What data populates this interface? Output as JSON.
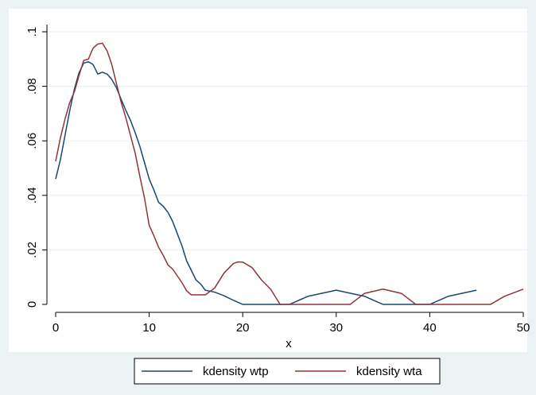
{
  "chart_data": {
    "type": "line",
    "title": "",
    "xlabel": "x",
    "ylabel": "",
    "xlim": [
      0,
      50
    ],
    "ylim": [
      0,
      0.1
    ],
    "x_ticks": [
      0,
      10,
      20,
      30,
      40,
      50
    ],
    "x_tick_labels": [
      "0",
      "10",
      "20",
      "30",
      "40",
      "50"
    ],
    "y_ticks": [
      0,
      0.02,
      0.04,
      0.06,
      0.08,
      0.1
    ],
    "y_tick_labels": [
      "0",
      ".02",
      ".04",
      ".06",
      ".08",
      ".1"
    ],
    "grid": true,
    "legend_position": "bottom",
    "series": [
      {
        "name": "kdensity wtp",
        "color": "#1a476f",
        "points": [
          [
            0,
            0.046
          ],
          [
            0.5,
            0.053
          ],
          [
            1,
            0.062
          ],
          [
            1.5,
            0.071
          ],
          [
            2,
            0.079
          ],
          [
            2.5,
            0.085
          ],
          [
            3,
            0.0885
          ],
          [
            3.5,
            0.089
          ],
          [
            4,
            0.088
          ],
          [
            4.5,
            0.0845
          ],
          [
            5,
            0.0852
          ],
          [
            5.5,
            0.0845
          ],
          [
            6,
            0.0825
          ],
          [
            6.5,
            0.0795
          ],
          [
            7,
            0.0752
          ],
          [
            7.5,
            0.0712
          ],
          [
            8,
            0.0675
          ],
          [
            8.5,
            0.063
          ],
          [
            9,
            0.058
          ],
          [
            9.5,
            0.052
          ],
          [
            10,
            0.046
          ],
          [
            10.5,
            0.042
          ],
          [
            11,
            0.0375
          ],
          [
            11.5,
            0.036
          ],
          [
            12,
            0.0338
          ],
          [
            12.5,
            0.0305
          ],
          [
            13,
            0.026
          ],
          [
            13.5,
            0.0215
          ],
          [
            14,
            0.016
          ],
          [
            14.5,
            0.0125
          ],
          [
            15,
            0.009
          ],
          [
            15.5,
            0.0075
          ],
          [
            16,
            0.0052
          ],
          [
            17,
            0.0045
          ],
          [
            18,
            0.0032
          ],
          [
            19,
            0.0015
          ],
          [
            20,
            0
          ],
          [
            25,
            0
          ],
          [
            27,
            0.003
          ],
          [
            30,
            0.0052
          ],
          [
            33,
            0.003
          ],
          [
            35,
            0
          ],
          [
            40,
            0
          ],
          [
            42,
            0.003
          ],
          [
            45,
            0.0052
          ]
        ]
      },
      {
        "name": "kdensity wta",
        "color": "#90353b",
        "points": [
          [
            0,
            0.0525
          ],
          [
            0.5,
            0.061
          ],
          [
            1,
            0.068
          ],
          [
            1.5,
            0.074
          ],
          [
            2,
            0.078
          ],
          [
            2.5,
            0.084
          ],
          [
            3,
            0.0895
          ],
          [
            3.5,
            0.09
          ],
          [
            4,
            0.094
          ],
          [
            4.5,
            0.0955
          ],
          [
            5,
            0.0958
          ],
          [
            5.5,
            0.093
          ],
          [
            6,
            0.088
          ],
          [
            6.5,
            0.081
          ],
          [
            7,
            0.0742
          ],
          [
            7.5,
            0.0685
          ],
          [
            8,
            0.062
          ],
          [
            8.5,
            0.0555
          ],
          [
            9,
            0.047
          ],
          [
            9.5,
            0.039
          ],
          [
            10,
            0.029
          ],
          [
            10.5,
            0.0252
          ],
          [
            11,
            0.021
          ],
          [
            11.5,
            0.018
          ],
          [
            12,
            0.0145
          ],
          [
            12.5,
            0.013
          ],
          [
            13,
            0.0105
          ],
          [
            13.5,
            0.008
          ],
          [
            14,
            0.005
          ],
          [
            14.5,
            0.0035
          ],
          [
            15,
            0.0035
          ],
          [
            15.5,
            0.0035
          ],
          [
            16,
            0.0035
          ],
          [
            17,
            0.006
          ],
          [
            18,
            0.0115
          ],
          [
            19,
            0.015
          ],
          [
            19.5,
            0.0156
          ],
          [
            20,
            0.0155
          ],
          [
            21,
            0.0135
          ],
          [
            22,
            0.009
          ],
          [
            23,
            0.0055
          ],
          [
            24,
            0
          ],
          [
            31.5,
            0
          ],
          [
            33,
            0.004
          ],
          [
            35,
            0.0056
          ],
          [
            37,
            0.004
          ],
          [
            38.5,
            0
          ],
          [
            46.5,
            0
          ],
          [
            48,
            0.003
          ],
          [
            50,
            0.0056
          ]
        ]
      }
    ]
  }
}
